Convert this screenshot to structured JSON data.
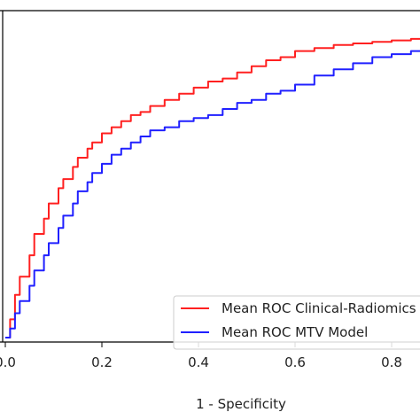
{
  "chart_data": {
    "type": "line",
    "xlabel": "1 - Specificity",
    "ylabel": "",
    "title": "",
    "xlim": [
      0.0,
      0.87
    ],
    "ylim": [
      0.0,
      1.0
    ],
    "x_ticks": [
      "0.0",
      "0.2",
      "0.4",
      "0.6",
      "0.8"
    ],
    "x_tick_values": [
      0.0,
      0.2,
      0.4,
      0.6,
      0.8
    ],
    "grid": false,
    "legend_position": "lower-right",
    "series": [
      {
        "name": "Mean ROC Clinical-Radiomics",
        "color": "#ff2020",
        "x": [
          0.0,
          0.01,
          0.02,
          0.03,
          0.05,
          0.06,
          0.08,
          0.09,
          0.11,
          0.12,
          0.14,
          0.15,
          0.17,
          0.18,
          0.2,
          0.22,
          0.24,
          0.26,
          0.28,
          0.3,
          0.33,
          0.36,
          0.39,
          0.42,
          0.45,
          0.48,
          0.51,
          0.54,
          0.57,
          0.6,
          0.64,
          0.68,
          0.72,
          0.76,
          0.8,
          0.84,
          0.87
        ],
        "y": [
          0.0,
          0.06,
          0.14,
          0.2,
          0.27,
          0.34,
          0.39,
          0.44,
          0.49,
          0.52,
          0.56,
          0.59,
          0.62,
          0.64,
          0.67,
          0.69,
          0.71,
          0.73,
          0.74,
          0.76,
          0.78,
          0.8,
          0.82,
          0.84,
          0.85,
          0.87,
          0.89,
          0.91,
          0.92,
          0.94,
          0.95,
          0.96,
          0.965,
          0.97,
          0.975,
          0.98,
          0.985
        ]
      },
      {
        "name": "Mean ROC MTV Model",
        "color": "#2020ff",
        "x": [
          0.0,
          0.01,
          0.02,
          0.03,
          0.05,
          0.06,
          0.08,
          0.09,
          0.11,
          0.12,
          0.14,
          0.15,
          0.17,
          0.18,
          0.2,
          0.22,
          0.24,
          0.26,
          0.28,
          0.3,
          0.33,
          0.36,
          0.39,
          0.42,
          0.45,
          0.48,
          0.51,
          0.54,
          0.57,
          0.6,
          0.64,
          0.68,
          0.72,
          0.76,
          0.8,
          0.84,
          0.87
        ],
        "y": [
          0.0,
          0.03,
          0.08,
          0.12,
          0.17,
          0.22,
          0.27,
          0.31,
          0.36,
          0.4,
          0.44,
          0.48,
          0.51,
          0.54,
          0.57,
          0.6,
          0.62,
          0.64,
          0.66,
          0.68,
          0.69,
          0.71,
          0.72,
          0.73,
          0.75,
          0.77,
          0.78,
          0.8,
          0.81,
          0.83,
          0.86,
          0.88,
          0.9,
          0.92,
          0.93,
          0.94,
          0.945
        ]
      }
    ]
  }
}
